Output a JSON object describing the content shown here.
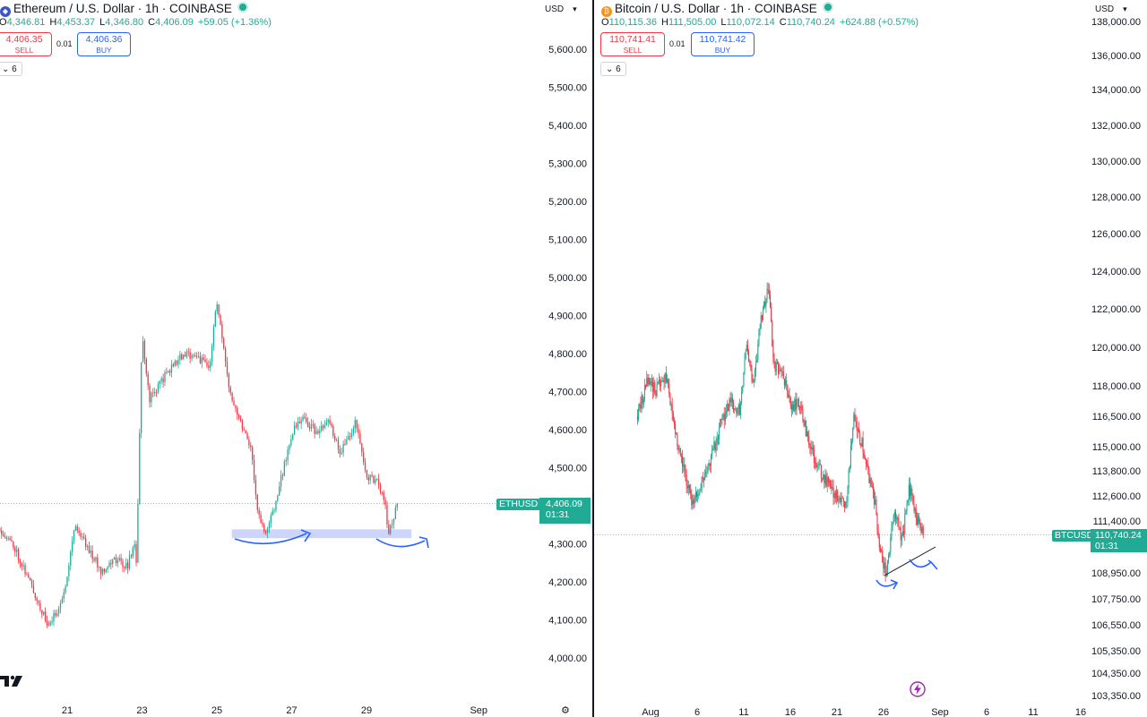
{
  "eth": {
    "title": "Ethereum / U.S. Dollar · 1h · COINBASE",
    "coin_glyph": "◆",
    "coin_color": "#3c56c9",
    "ohlc": [
      {
        "k": "O",
        "v": "4,346.81"
      },
      {
        "k": "H",
        "v": "4,453.37"
      },
      {
        "k": "L",
        "v": "4,346.80"
      },
      {
        "k": "C",
        "v": "4,406.09"
      },
      {
        "k": "",
        "v": "+59.05 (+1.36%)"
      }
    ],
    "sell": {
      "price": "4,406.35",
      "label": "SELL"
    },
    "spread": "0.01",
    "buy": {
      "price": "4,406.36",
      "label": "BUY"
    },
    "collapse_label": "6",
    "currency": "USD",
    "symbol_badge": "ETHUSD",
    "last_price": "4,406.09",
    "countdown": "01:31",
    "x_labels": [
      "21",
      "23",
      "25",
      "27",
      "29",
      "Sep"
    ]
  },
  "btc": {
    "title": "Bitcoin / U.S. Dollar · 1h · COINBASE",
    "coin_glyph": "₿",
    "coin_color": "#f7931a",
    "ohlc": [
      {
        "k": "O",
        "v": "110,115.36"
      },
      {
        "k": "H",
        "v": "111,505.00"
      },
      {
        "k": "L",
        "v": "110,072.14"
      },
      {
        "k": "C",
        "v": "110,740.24"
      },
      {
        "k": "",
        "v": "+624.88 (+0.57%)"
      }
    ],
    "sell": {
      "price": "110,741.41",
      "label": "SELL"
    },
    "spread": "0.01",
    "buy": {
      "price": "110,741.42",
      "label": "BUY"
    },
    "collapse_label": "6",
    "currency": "USD",
    "symbol_badge": "BTCUSD",
    "last_price": "110,740.24",
    "countdown": "01:31",
    "x_labels": [
      "Aug",
      "6",
      "11",
      "16",
      "21",
      "26",
      "Sep",
      "6",
      "11",
      "16"
    ]
  },
  "colors": {
    "up": "#22ab94",
    "down": "#f23645",
    "annotation": "#2962ff",
    "zone": "#c5cefc",
    "grid_text": "#131722"
  },
  "icons": {
    "tv_logo": "tradingview-logo-icon",
    "settings": "gear-icon",
    "bolt": "lightning-icon"
  },
  "chart_data": [
    {
      "type": "candlestick",
      "title": "Ethereum / U.S. Dollar · 1h · COINBASE",
      "y_ticks": [
        "5,600.00",
        "5,500.00",
        "5,400.00",
        "5,300.00",
        "5,200.00",
        "5,100.00",
        "5,000.00",
        "4,900.00",
        "4,800.00",
        "4,700.00",
        "4,600.00",
        "4,500.00",
        "4,400.00",
        "4,300.00",
        "4,200.00",
        "4,100.00",
        "4,000.00"
      ],
      "ylim": [
        3950,
        5650
      ],
      "x_tick_labels": [
        "21",
        "23",
        "25",
        "27",
        "29",
        "Sep"
      ],
      "path_days": [
        19.2,
        19.6,
        20.0,
        20.5,
        20.9,
        21.2,
        21.5,
        21.9,
        22.3,
        22.6,
        22.8,
        22.85,
        23.0,
        23.2,
        23.6,
        24.0,
        24.4,
        24.8,
        25.0,
        25.3,
        25.6,
        25.9,
        26.1,
        26.3,
        26.6,
        27.0,
        27.3,
        27.7,
        28.0,
        28.3,
        28.7,
        29.0,
        29.3,
        29.5,
        29.6,
        29.8
      ],
      "path_prices": [
        4340,
        4290,
        4200,
        4080,
        4160,
        4350,
        4300,
        4230,
        4260,
        4240,
        4300,
        4250,
        4850,
        4680,
        4740,
        4790,
        4800,
        4760,
        4940,
        4720,
        4630,
        4560,
        4380,
        4320,
        4420,
        4590,
        4630,
        4590,
        4620,
        4540,
        4620,
        4480,
        4460,
        4400,
        4320,
        4406
      ],
      "last": 4406.09,
      "zone": {
        "from_day": 25.4,
        "to_day": 30.2,
        "low": 4315,
        "high": 4338
      },
      "day_range": [
        19.0,
        32.0
      ]
    },
    {
      "type": "candlestick",
      "title": "Bitcoin / U.S. Dollar · 1h · COINBASE",
      "y_ticks": [
        "138,000.00",
        "136,000.00",
        "134,000.00",
        "132,000.00",
        "130,000.00",
        "128,000.00",
        "126,000.00",
        "124,000.00",
        "122,000.00",
        "120,000.00",
        "118,000.00",
        "116,500.00",
        "115,000.00",
        "113,800.00",
        "112,600.00",
        "111,400.00",
        "108,950.00",
        "107,750.00",
        "106,550.00",
        "105,350.00",
        "104,350.00",
        "103,350.00"
      ],
      "x_tick_labels": [
        "Aug",
        "6",
        "11",
        "16",
        "21",
        "26",
        "Sep",
        "6",
        "11",
        "16"
      ],
      "path_days": [
        -0.5,
        0.5,
        1.5,
        2.5,
        3.5,
        4.5,
        5.5,
        7.5,
        8.5,
        9.5,
        10.5,
        11.2,
        12.0,
        12.8,
        13.6,
        14.2,
        15.0,
        16.0,
        17.0,
        18.0,
        19.0,
        20.5,
        22.0,
        22.8,
        23.8,
        24.5,
        25.2,
        25.5,
        26.3,
        27.2,
        28.0,
        28.8,
        29.6,
        30.3
      ],
      "path_prices": [
        116500,
        118200,
        117800,
        118500,
        116000,
        113800,
        112200,
        114500,
        116200,
        117200,
        116800,
        120000,
        118000,
        121500,
        123200,
        119000,
        118800,
        117000,
        117200,
        115000,
        114000,
        112800,
        112300,
        116500,
        115000,
        113300,
        112100,
        110200,
        108950,
        112000,
        110400,
        113000,
        111500,
        110740
      ],
      "last": 110740.24,
      "day_range": [
        -2.0,
        34.0
      ]
    }
  ]
}
